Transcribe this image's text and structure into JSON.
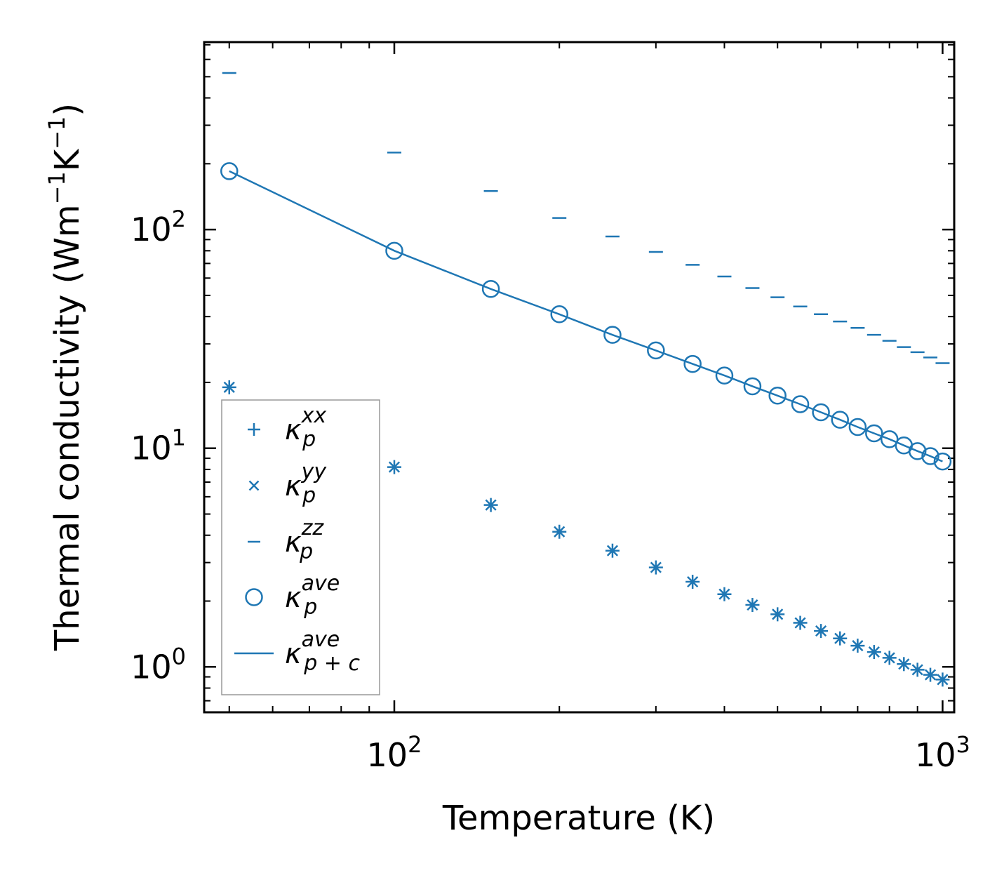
{
  "chart_data": {
    "type": "scatter",
    "title": "",
    "xlabel": "Temperature (K)",
    "ylabel": "Thermal conductivity (Wm$^{-1}$K$^{-1}$)",
    "ylabel_parts": {
      "base": "Thermal conductivity (Wm",
      "exp1": "−1",
      "mid": "K",
      "exp2": "−1",
      "end": ")"
    },
    "xscale": "log",
    "yscale": "log",
    "xlim": [
      45,
      1050
    ],
    "ylim": [
      0.62,
      720
    ],
    "x_ticks": [
      {
        "base": "10",
        "exp": "2",
        "value": 100
      },
      {
        "base": "10",
        "exp": "3",
        "value": 1000
      }
    ],
    "y_ticks": [
      {
        "base": "10",
        "exp": "0",
        "value": 1
      },
      {
        "base": "10",
        "exp": "1",
        "value": 10
      },
      {
        "base": "10",
        "exp": "2",
        "value": 100
      }
    ],
    "legend_position": "lower-left",
    "color": "#1f77b4",
    "x": [
      50,
      100,
      150,
      200,
      250,
      300,
      350,
      400,
      450,
      500,
      550,
      600,
      650,
      700,
      750,
      800,
      850,
      900,
      950,
      1000
    ],
    "series": [
      {
        "name": "kappa_p_xx",
        "label_base": "κ",
        "label_sup": "xx",
        "label_sub": "p",
        "marker": "plus",
        "values": [
          19.0,
          8.2,
          5.5,
          4.15,
          3.4,
          2.85,
          2.45,
          2.15,
          1.92,
          1.74,
          1.59,
          1.46,
          1.35,
          1.25,
          1.17,
          1.1,
          1.03,
          0.97,
          0.92,
          0.875
        ]
      },
      {
        "name": "kappa_p_yy",
        "label_base": "κ",
        "label_sup": "yy",
        "label_sub": "p",
        "marker": "x",
        "values": [
          19.0,
          8.2,
          5.5,
          4.15,
          3.4,
          2.85,
          2.45,
          2.15,
          1.92,
          1.74,
          1.59,
          1.46,
          1.35,
          1.25,
          1.17,
          1.1,
          1.03,
          0.97,
          0.92,
          0.875
        ]
      },
      {
        "name": "kappa_p_zz",
        "label_base": "κ",
        "label_sup": "zz",
        "label_sub": "p",
        "marker": "hline",
        "values": [
          520,
          225,
          150,
          113,
          93,
          79,
          69,
          61,
          54,
          49,
          44.5,
          41,
          38,
          35.5,
          33,
          31,
          29,
          27.5,
          26,
          24.5
        ]
      },
      {
        "name": "kappa_p_ave",
        "label_base": "κ",
        "label_sup": "ave",
        "label_sub": "p",
        "marker": "circle",
        "values": [
          185,
          80,
          53.5,
          41,
          33,
          28,
          24.3,
          21.5,
          19.2,
          17.4,
          15.9,
          14.6,
          13.5,
          12.5,
          11.7,
          11.0,
          10.3,
          9.7,
          9.2,
          8.7
        ]
      },
      {
        "name": "kappa_pc_ave",
        "label_base": "κ",
        "label_sup": "ave",
        "label_sub": "p + c",
        "marker": "line",
        "values": [
          185,
          80,
          53.5,
          41,
          33,
          28,
          24.3,
          21.5,
          19.2,
          17.4,
          15.9,
          14.6,
          13.5,
          12.5,
          11.7,
          11.0,
          10.3,
          9.7,
          9.2,
          8.7
        ]
      }
    ]
  }
}
